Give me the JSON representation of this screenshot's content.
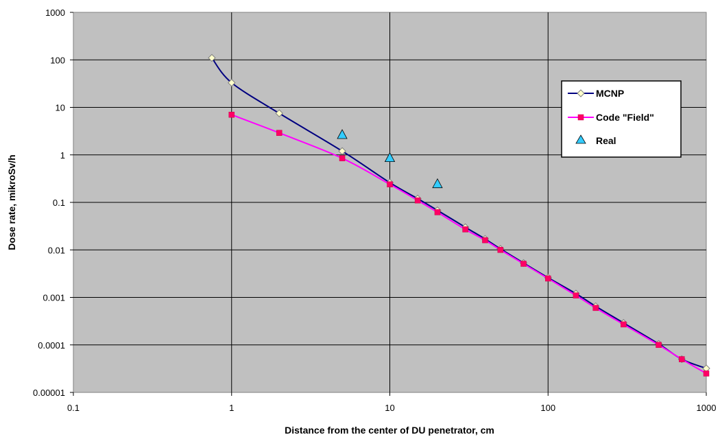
{
  "chart_data": {
    "type": "scatter",
    "title": "",
    "xlabel": "Distance from the center of DU penetrator, cm",
    "ylabel": "Dose rate, mikroSv/h",
    "xscale": "log",
    "yscale": "log",
    "xlim": [
      0.1,
      1000
    ],
    "ylim": [
      1e-05,
      1000
    ],
    "x_ticks": [
      "0.1",
      "1",
      "10",
      "100",
      "1000"
    ],
    "y_ticks": [
      "0.00001",
      "0.0001",
      "0.001",
      "0.01",
      "0.1",
      "1",
      "10",
      "100",
      "1000"
    ],
    "grid": true,
    "plot_background": "#c0c0c0",
    "legend_position": "right",
    "series": [
      {
        "name": "MCNP",
        "style": "line-with-diamond-markers",
        "color": "#000080",
        "marker_fill": "#ffffcc",
        "x": [
          0.75,
          1,
          2,
          5,
          10,
          15,
          20,
          30,
          40,
          50,
          70,
          100,
          150,
          200,
          300,
          500,
          700,
          1000
        ],
        "y": [
          110,
          33,
          7.5,
          1.2,
          0.26,
          0.12,
          0.068,
          0.03,
          0.017,
          0.0105,
          0.0053,
          0.0026,
          0.0012,
          0.00065,
          0.00029,
          0.000105,
          5e-05,
          3.2e-05
        ]
      },
      {
        "name": "Code \"Field\"",
        "style": "line-with-square-markers",
        "color": "#ff00ff",
        "marker_fill": "#ff0066",
        "x": [
          1,
          2,
          5,
          10,
          15,
          20,
          30,
          40,
          50,
          70,
          100,
          150,
          200,
          300,
          500,
          700,
          1000
        ],
        "y": [
          7,
          2.9,
          0.85,
          0.24,
          0.11,
          0.062,
          0.027,
          0.016,
          0.01,
          0.0051,
          0.0025,
          0.0011,
          0.0006,
          0.00027,
          0.0001,
          5e-05,
          2.5e-05
        ]
      },
      {
        "name": "Real",
        "style": "triangle-markers",
        "color": "#000000",
        "marker_fill": "#33ccff",
        "x": [
          5,
          10,
          20
        ],
        "y": [
          2.6,
          0.85,
          0.24
        ]
      }
    ]
  }
}
